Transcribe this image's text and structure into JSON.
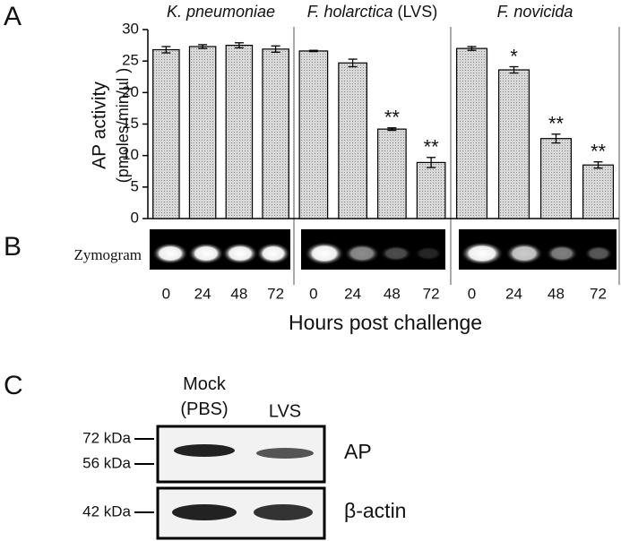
{
  "figure": {
    "panel_labels": [
      "A",
      "B",
      "C"
    ],
    "x_label": "Hours post challenge",
    "zymogram_label": "Zymogram"
  },
  "chart_data": [
    {
      "type": "bar",
      "title": "K. pneumoniae",
      "categories": [
        "0",
        "24",
        "48",
        "72"
      ],
      "values": [
        26.8,
        27.3,
        27.5,
        26.9
      ],
      "errors": [
        0.5,
        0.3,
        0.4,
        0.5
      ],
      "annotations": [
        null,
        null,
        null,
        null
      ],
      "color": "#c4c4c4",
      "ylim": [
        0,
        30
      ],
      "yticks": [
        0,
        5,
        10,
        15,
        20,
        25,
        30
      ],
      "ylabel": [
        "AP activity",
        "(pmoles/min/µl )"
      ]
    },
    {
      "type": "bar",
      "title": "F. holarctica",
      "subtitle": "(LVS)",
      "categories": [
        "0",
        "24",
        "48",
        "72"
      ],
      "values": [
        26.6,
        24.7,
        14.2,
        8.9
      ],
      "errors": [
        0.1,
        0.6,
        0.2,
        0.8
      ],
      "annotations": [
        null,
        null,
        "**",
        "**"
      ],
      "color": "#c4c4c4",
      "ylim": [
        0,
        30
      ]
    },
    {
      "type": "bar",
      "title": "F. novicida",
      "categories": [
        "0",
        "24",
        "48",
        "72"
      ],
      "values": [
        27.0,
        23.6,
        12.7,
        8.5
      ],
      "errors": [
        0.3,
        0.5,
        0.7,
        0.5
      ],
      "annotations": [
        null,
        "*",
        "**",
        "**"
      ],
      "color": "#c4c4c4",
      "ylim": [
        0,
        30
      ]
    }
  ],
  "western_blot": {
    "lanes": [
      "Mock\n(PBS)",
      "LVS"
    ],
    "markers": [
      "72 kDa",
      "56 kDa",
      "42 kDa"
    ],
    "blots": [
      "AP",
      "β-actin"
    ]
  }
}
